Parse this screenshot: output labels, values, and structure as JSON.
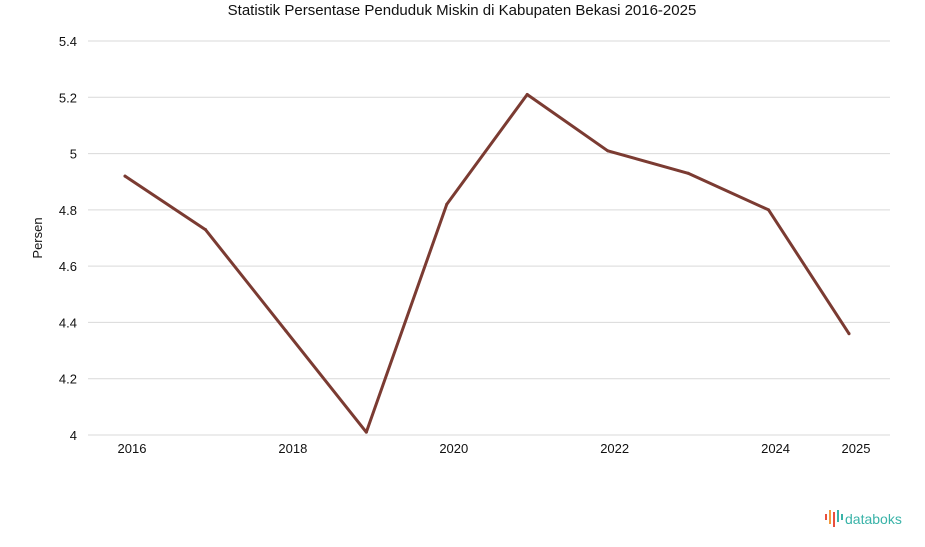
{
  "chart_data": {
    "type": "line",
    "title": "Statistik Persentase Penduduk Miskin di Kabupaten Bekasi 2016-2025",
    "xlabel": "",
    "ylabel": "Persen",
    "x": [
      2016,
      2017,
      2018,
      2019,
      2020,
      2021,
      2022,
      2023,
      2024,
      2025
    ],
    "x_tick_labels": [
      "2016",
      "2018",
      "2020",
      "2022",
      "2024",
      "2025"
    ],
    "y_tick_labels": [
      "4",
      "4.2",
      "4.4",
      "4.6",
      "4.8",
      "5",
      "5.2",
      "5.4"
    ],
    "ylim": [
      4,
      5.4
    ],
    "grid": true,
    "series": [
      {
        "values": [
          4.92,
          4.73,
          4.37,
          4.01,
          4.82,
          5.21,
          5.01,
          4.93,
          4.8,
          4.36
        ]
      }
    ],
    "line_color": "#7b3b32",
    "grid_color": "#d9d9d9"
  },
  "brand": {
    "name": "databoks",
    "icon": "databoks-logo-icon",
    "color": "#39b3a8"
  }
}
